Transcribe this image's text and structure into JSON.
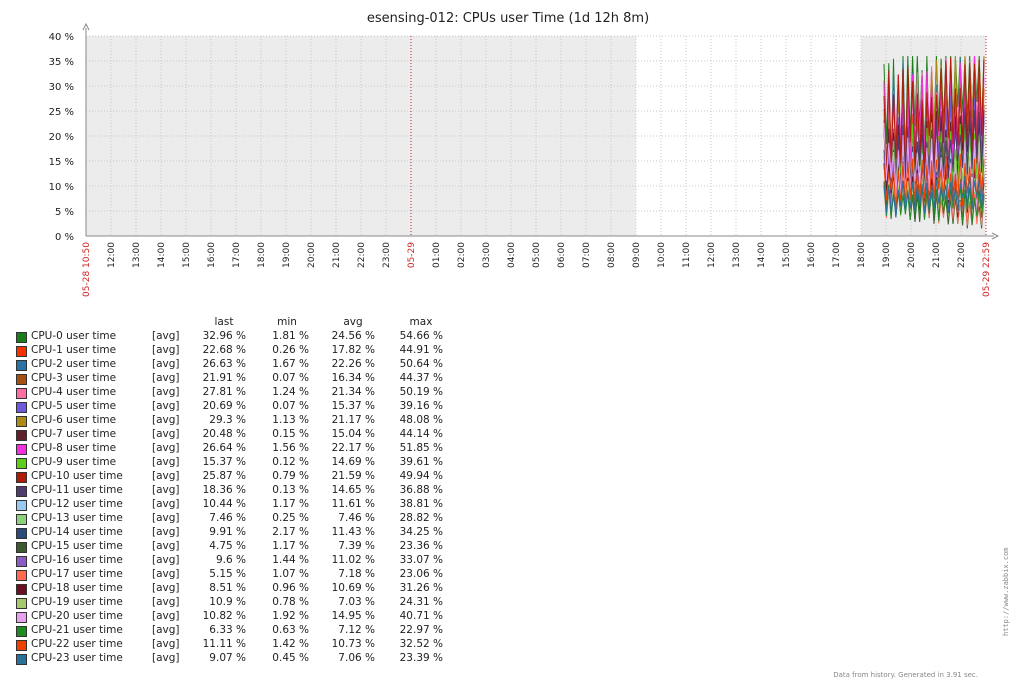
{
  "chart_data": {
    "type": "line",
    "title": "esensing-012: CPUs user Time (1d 12h 8m)",
    "y_ticks": [
      "40 %",
      "35 %",
      "30 %",
      "25 %",
      "20 %",
      "15 %",
      "10 %",
      "5 %",
      "0 %"
    ],
    "ylim": [
      0,
      40
    ],
    "x_ticks": [
      "05-28 10:50",
      "12:00",
      "13:00",
      "14:00",
      "15:00",
      "16:00",
      "17:00",
      "18:00",
      "19:00",
      "20:00",
      "21:00",
      "22:00",
      "23:00",
      "05-29",
      "01:00",
      "02:00",
      "03:00",
      "04:00",
      "05:00",
      "06:00",
      "07:00",
      "08:00",
      "09:00",
      "10:00",
      "11:00",
      "12:00",
      "13:00",
      "14:00",
      "15:00",
      "16:00",
      "17:00",
      "18:00",
      "19:00",
      "20:00",
      "21:00",
      "22:00",
      "05-29 22:59"
    ],
    "highlighted_ticks": [
      "05-28 10:50",
      "05-29",
      "05-29 22:59"
    ],
    "grid": true,
    "data_window": [
      "05-29 18:50",
      "05-29 22:59"
    ],
    "legend_headers": {
      "last": "last",
      "min": "min",
      "avg": "avg",
      "max": "max"
    },
    "series": [
      {
        "name": "CPU-0 user time",
        "fn": "[avg]",
        "last": "32.96 %",
        "min": "1.81 %",
        "avg": "24.56 %",
        "max": "54.66 %",
        "color": "#1a7c1a"
      },
      {
        "name": "CPU-1 user time",
        "fn": "[avg]",
        "last": "22.68 %",
        "min": "0.26 %",
        "avg": "17.82 %",
        "max": "44.91 %",
        "color": "#f63100"
      },
      {
        "name": "CPU-2 user time",
        "fn": "[avg]",
        "last": "26.63 %",
        "min": "1.67 %",
        "avg": "22.26 %",
        "max": "50.64 %",
        "color": "#2774a4"
      },
      {
        "name": "CPU-3 user time",
        "fn": "[avg]",
        "last": "21.91 %",
        "min": "0.07 %",
        "avg": "16.34 %",
        "max": "44.37 %",
        "color": "#a54f10"
      },
      {
        "name": "CPU-4 user time",
        "fn": "[avg]",
        "last": "27.81 %",
        "min": "1.24 %",
        "avg": "21.34 %",
        "max": "50.19 %",
        "color": "#fc6ea3"
      },
      {
        "name": "CPU-5 user time",
        "fn": "[avg]",
        "last": "20.69 %",
        "min": "0.07 %",
        "avg": "15.37 %",
        "max": "39.16 %",
        "color": "#6c59dc"
      },
      {
        "name": "CPU-6 user time",
        "fn": "[avg]",
        "last": "29.3 %",
        "min": "1.13 %",
        "avg": "21.17 %",
        "max": "48.08 %",
        "color": "#ac8c14"
      },
      {
        "name": "CPU-7 user time",
        "fn": "[avg]",
        "last": "20.48 %",
        "min": "0.15 %",
        "avg": "15.04 %",
        "max": "44.14 %",
        "color": "#611f27"
      },
      {
        "name": "CPU-8 user time",
        "fn": "[avg]",
        "last": "26.64 %",
        "min": "1.56 %",
        "avg": "22.17 %",
        "max": "51.85 %",
        "color": "#f230e0"
      },
      {
        "name": "CPU-9 user time",
        "fn": "[avg]",
        "last": "15.37 %",
        "min": "0.12 %",
        "avg": "14.69 %",
        "max": "39.61 %",
        "color": "#5ccd18"
      },
      {
        "name": "CPU-10 user time",
        "fn": "[avg]",
        "last": "25.87 %",
        "min": "0.79 %",
        "avg": "21.59 %",
        "max": "49.94 %",
        "color": "#b01c08"
      },
      {
        "name": "CPU-11 user time",
        "fn": "[avg]",
        "last": "18.36 %",
        "min": "0.13 %",
        "avg": "14.65 %",
        "max": "36.88 %",
        "color": "#4d3d6e"
      },
      {
        "name": "CPU-12 user time",
        "fn": "[avg]",
        "last": "10.44 %",
        "min": "1.17 %",
        "avg": "11.61 %",
        "max": "38.81 %",
        "color": "#99c8f0"
      },
      {
        "name": "CPU-13 user time",
        "fn": "[avg]",
        "last": "7.46 %",
        "min": "0.25 %",
        "avg": "7.46 %",
        "max": "28.82 %",
        "color": "#8ed17b"
      },
      {
        "name": "CPU-14 user time",
        "fn": "[avg]",
        "last": "9.91 %",
        "min": "2.17 %",
        "avg": "11.43 %",
        "max": "34.25 %",
        "color": "#2b4c78"
      },
      {
        "name": "CPU-15 user time",
        "fn": "[avg]",
        "last": "4.75 %",
        "min": "1.17 %",
        "avg": "7.39 %",
        "max": "23.36 %",
        "color": "#3c5a32"
      },
      {
        "name": "CPU-16 user time",
        "fn": "[avg]",
        "last": "9.6 %",
        "min": "1.44 %",
        "avg": "11.02 %",
        "max": "33.07 %",
        "color": "#8a5cc4"
      },
      {
        "name": "CPU-17 user time",
        "fn": "[avg]",
        "last": "5.15 %",
        "min": "1.07 %",
        "avg": "7.18 %",
        "max": "23.06 %",
        "color": "#ff6a50"
      },
      {
        "name": "CPU-18 user time",
        "fn": "[avg]",
        "last": "8.51 %",
        "min": "0.96 %",
        "avg": "10.69 %",
        "max": "31.26 %",
        "color": "#6b1020"
      },
      {
        "name": "CPU-19 user time",
        "fn": "[avg]",
        "last": "10.9 %",
        "min": "0.78 %",
        "avg": "7.03 %",
        "max": "24.31 %",
        "color": "#a8c870"
      },
      {
        "name": "CPU-20 user time",
        "fn": "[avg]",
        "last": "10.82 %",
        "min": "1.92 %",
        "avg": "14.95 %",
        "max": "40.71 %",
        "color": "#e8a0f0"
      },
      {
        "name": "CPU-21 user time",
        "fn": "[avg]",
        "last": "6.33 %",
        "min": "0.63 %",
        "avg": "7.12 %",
        "max": "22.97 %",
        "color": "#1f8a20"
      },
      {
        "name": "CPU-22 user time",
        "fn": "[avg]",
        "last": "11.11 %",
        "min": "1.42 %",
        "avg": "10.73 %",
        "max": "32.52 %",
        "color": "#f04000"
      },
      {
        "name": "CPU-23 user time",
        "fn": "[avg]",
        "last": "9.07 %",
        "min": "0.45 %",
        "avg": "7.06 %",
        "max": "23.39 %",
        "color": "#2a7098"
      }
    ]
  },
  "footer_text": "Data from history. Generated in 3.91 sec.",
  "watermark_url": "http://www.zabbix.com",
  "colors": {
    "shade": "#ececec",
    "grid": "#c8c8c8",
    "axis": "#888888",
    "highlight_tick": "#cc2222"
  }
}
